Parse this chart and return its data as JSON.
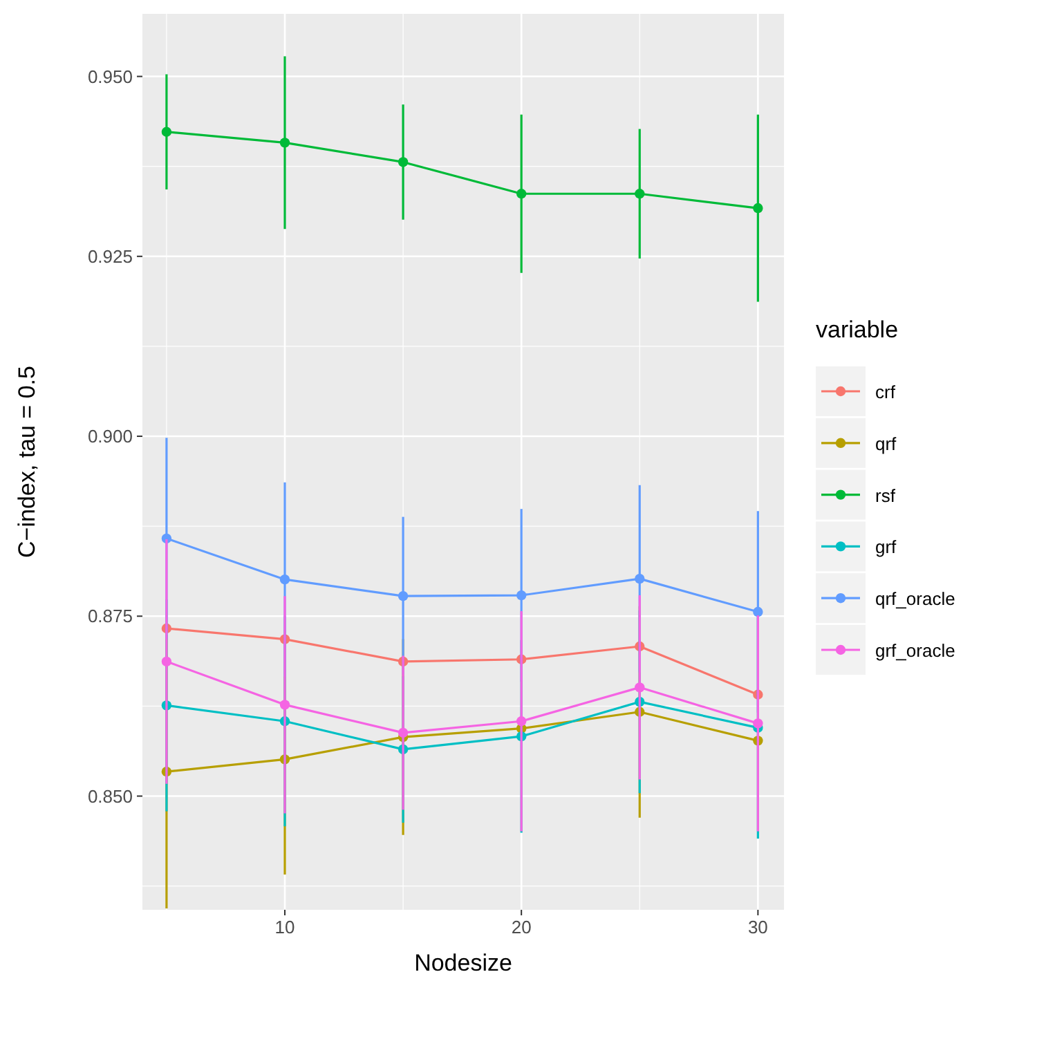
{
  "chart_data": {
    "type": "line",
    "xlabel": "Nodesize",
    "ylabel": "C−index, tau = 0.5",
    "legend_title": "variable",
    "x": [
      5,
      10,
      15,
      20,
      25,
      30
    ],
    "xlim": [
      3.98,
      31.1
    ],
    "xticks": [
      10,
      20,
      30
    ],
    "ylim": [
      0.8342,
      0.9587
    ],
    "yticks": [
      {
        "value": 0.85,
        "label": "0.850"
      },
      {
        "value": 0.875,
        "label": "0.875"
      },
      {
        "value": 0.9,
        "label": "0.900"
      },
      {
        "value": 0.925,
        "label": "0.925"
      },
      {
        "value": 0.95,
        "label": "0.950"
      }
    ],
    "grid": true,
    "legend": "right",
    "marker": "circle",
    "line_style": "solid",
    "series": [
      {
        "name": "crf",
        "color": "#f8766d",
        "values": [
          0.8733,
          0.8718,
          0.8687,
          0.869,
          0.8708,
          0.8641
        ],
        "errors": [
          null,
          null,
          null,
          null,
          null,
          null
        ]
      },
      {
        "name": "qrf",
        "color": "#b79f00",
        "values": [
          0.8534,
          0.8551,
          0.8582,
          0.8594,
          0.8617,
          0.8577
        ],
        "errors": [
          0.019,
          0.016,
          0.0136,
          null,
          0.0147,
          null
        ]
      },
      {
        "name": "rsf",
        "color": "#00ba38",
        "values": [
          0.9423,
          0.9408,
          0.9381,
          0.9337,
          0.9337,
          0.9317
        ],
        "errors": [
          0.008,
          0.012,
          0.008,
          0.011,
          0.009,
          0.013
        ]
      },
      {
        "name": "grf",
        "color": "#00bfc4",
        "values": [
          0.8626,
          0.8604,
          0.8565,
          0.8583,
          0.8631,
          0.8595
        ],
        "errors": [
          0.0147,
          0.0146,
          0.0102,
          0.0134,
          0.0127,
          0.0154
        ]
      },
      {
        "name": "qrf_oracle",
        "color": "#619cff",
        "values": [
          0.8858,
          0.8801,
          0.8778,
          0.8779,
          0.8802,
          0.8756
        ],
        "errors": [
          0.014,
          0.0135,
          0.011,
          0.012,
          0.013,
          0.014
        ]
      },
      {
        "name": "grf_oracle",
        "color": "#f564e3",
        "values": [
          0.8687,
          0.8627,
          0.8588,
          0.8604,
          0.8651,
          0.8601
        ],
        "errors": [
          0.017,
          0.0151,
          0.0107,
          0.0153,
          0.0128,
          0.015
        ]
      }
    ]
  }
}
